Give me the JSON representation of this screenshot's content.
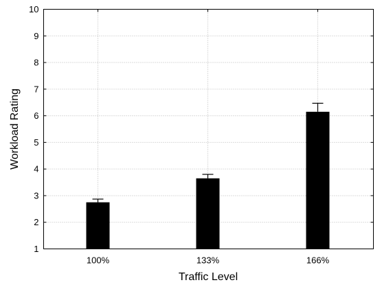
{
  "chart_data": {
    "type": "bar",
    "categories": [
      "100%",
      "133%",
      "166%"
    ],
    "values": [
      2.75,
      3.65,
      6.15
    ],
    "errors": [
      0.12,
      0.15,
      0.32
    ],
    "xlabel": "Traffic Level",
    "ylabel": "Workload Rating",
    "ylim": [
      1,
      10
    ],
    "yticks": [
      "1",
      "2",
      "3",
      "4",
      "5",
      "6",
      "7",
      "8",
      "9",
      "10"
    ],
    "grid": true,
    "bar_color": "#000000"
  }
}
